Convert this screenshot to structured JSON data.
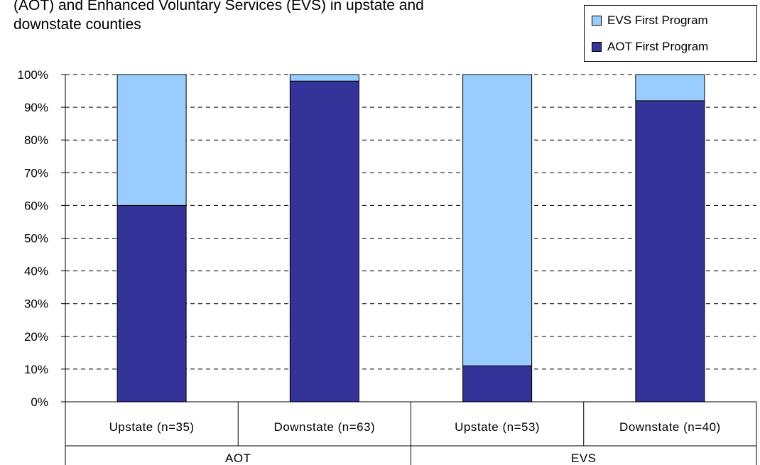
{
  "title_lines": [
    "(AOT) and Enhanced Voluntary Services (EVS) in upstate and",
    "downstate counties"
  ],
  "legend": [
    {
      "label": "EVS First Program",
      "color": "#99ccff"
    },
    {
      "label": "AOT First Program",
      "color": "#333399"
    }
  ],
  "chart_data": {
    "type": "bar",
    "stacked": true,
    "percent": true,
    "categories": [
      "Upstate (n=35)",
      "Downstate (n=63)",
      "Upstate (n=53)",
      "Downstate (n=40)"
    ],
    "groups": [
      {
        "label": "AOT",
        "categories": [
          "Upstate (n=35)",
          "Downstate (n=63)"
        ]
      },
      {
        "label": "EVS",
        "categories": [
          "Upstate (n=53)",
          "Downstate (n=40)"
        ]
      }
    ],
    "series": [
      {
        "name": "AOT First Program",
        "values": [
          60,
          98,
          11,
          92
        ],
        "color": "#333399"
      },
      {
        "name": "EVS First Program",
        "values": [
          40,
          2,
          89,
          8
        ],
        "color": "#99ccff"
      }
    ],
    "yticks": [
      "0%",
      "10%",
      "20%",
      "30%",
      "40%",
      "50%",
      "60%",
      "70%",
      "80%",
      "90%",
      "100%"
    ],
    "ylim": [
      0,
      100
    ],
    "grid": true,
    "grid_style": "dashed",
    "legend_position": "top-right"
  }
}
